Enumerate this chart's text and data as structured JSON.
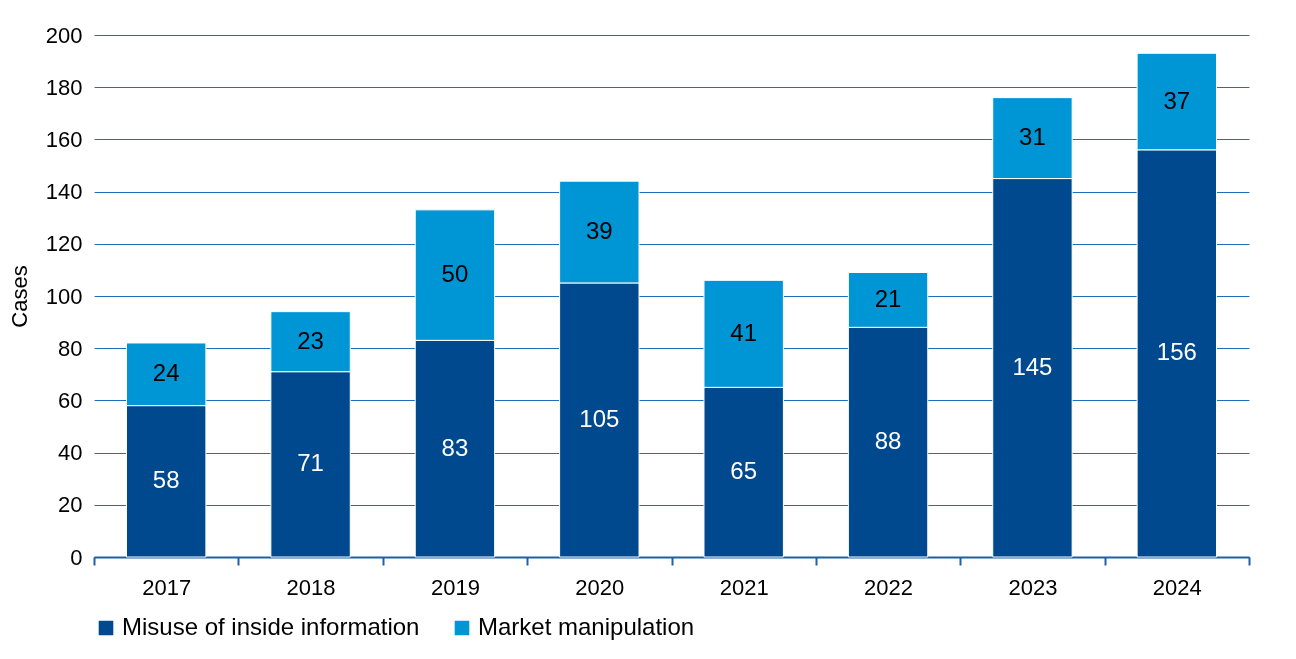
{
  "chart_data": {
    "type": "bar",
    "stacked": true,
    "ylabel": "Cases",
    "categories": [
      "2017",
      "2018",
      "2019",
      "2020",
      "2021",
      "2022",
      "2023",
      "2024"
    ],
    "series": [
      {
        "name": "Misuse of inside information",
        "color": "#00498f",
        "values": [
          58,
          71,
          83,
          105,
          65,
          88,
          145,
          156
        ]
      },
      {
        "name": "Market manipulation",
        "color": "#0096d6",
        "values": [
          24,
          23,
          50,
          39,
          41,
          21,
          31,
          37
        ]
      }
    ],
    "ylim": [
      0,
      200
    ],
    "yticks": [
      0,
      20,
      40,
      60,
      80,
      100,
      120,
      140,
      160,
      180,
      200
    ],
    "grid": "y",
    "legend": "bottom left",
    "data_labels": true
  }
}
